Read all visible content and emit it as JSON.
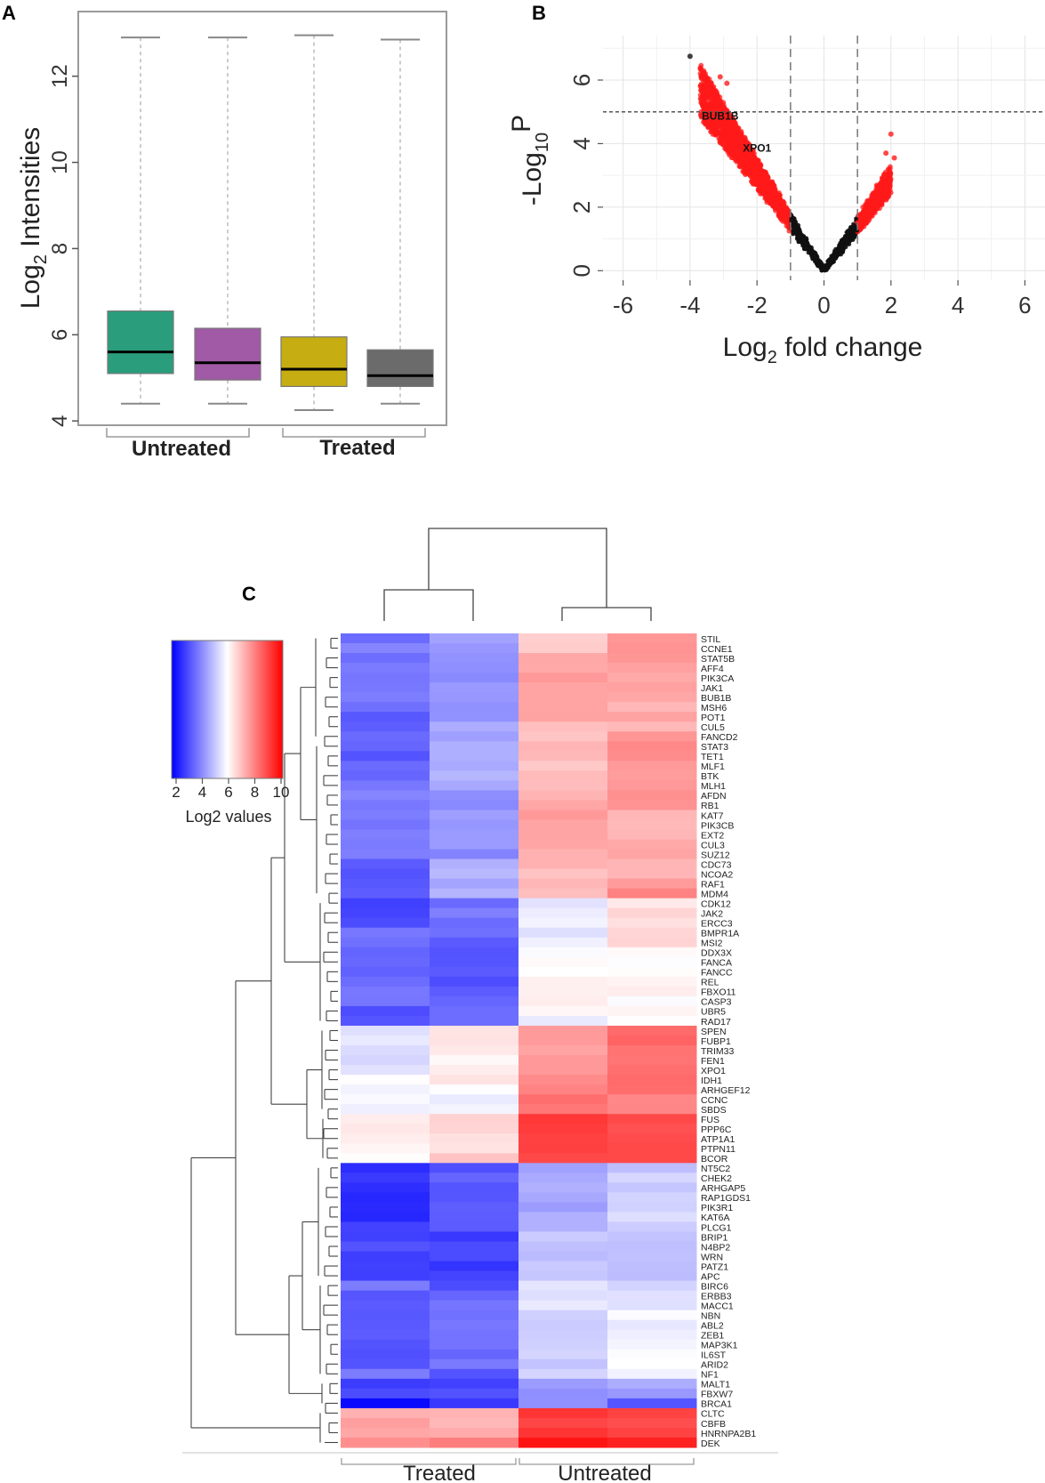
{
  "chart_data": [
    {
      "panel": "A",
      "type": "box",
      "ylabel": "Log2 Intensities",
      "ylim": [
        3.9,
        13.5
      ],
      "yticks": [
        4,
        6,
        8,
        10,
        12
      ],
      "boxes": [
        {
          "min": 4.4,
          "q1": 5.1,
          "median": 5.6,
          "q3": 6.55,
          "max": 12.9,
          "color": "#2a9d7c"
        },
        {
          "min": 4.4,
          "q1": 4.95,
          "median": 5.35,
          "q3": 6.15,
          "max": 12.9,
          "color": "#a05aa6"
        },
        {
          "min": 4.25,
          "q1": 4.8,
          "median": 5.2,
          "q3": 5.95,
          "max": 12.95,
          "color": "#c6ad12"
        },
        {
          "min": 4.4,
          "q1": 4.8,
          "median": 5.05,
          "q3": 5.65,
          "max": 12.85,
          "color": "#6b6b6b"
        }
      ],
      "groups": [
        "Untreated",
        "Treated"
      ]
    },
    {
      "panel": "B",
      "type": "scatter",
      "title": "",
      "xlabel": "Log2 fold change",
      "ylabel": "-Log10P",
      "xlim": [
        -6.6,
        6.6
      ],
      "ylim": [
        -0.3,
        7.4
      ],
      "xticks": [
        -6,
        -4,
        -2,
        0,
        2,
        4,
        6
      ],
      "yticks": [
        0,
        2,
        4,
        6
      ],
      "thresholds": {
        "fold_change": [
          -1,
          1
        ],
        "p_value": 5
      },
      "labels": [
        {
          "text": "BUB1B",
          "x": -3.1,
          "y": 4.75
        },
        {
          "text": "XPO1",
          "x": -2.0,
          "y": 3.75
        }
      ]
    },
    {
      "panel": "C",
      "type": "heatmap",
      "columns": [
        "Treated",
        "Untreated"
      ],
      "legend": {
        "title": "Log2 values",
        "ticks": [
          "2",
          "4",
          "6",
          "8",
          "10"
        ]
      },
      "genes": [
        "STIL",
        "CCNE1",
        "STAT5B",
        "AFF4",
        "PIK3CA",
        "JAK1",
        "BUB1B",
        "MSH6",
        "POT1",
        "CUL5",
        "FANCD2",
        "STAT3",
        "TET1",
        "MLF1",
        "BTK",
        "MLH1",
        "AFDN",
        "RB1",
        "KAT7",
        "PIK3CB",
        "EXT2",
        "CUL3",
        "SUZ12",
        "CDC73",
        "NCOA2",
        "RAF1",
        "MDM4",
        "CDK12",
        "JAK2",
        "ERCC3",
        "BMPR1A",
        "MSI2",
        "DDX3X",
        "FANCA",
        "FANCC",
        "REL",
        "FBXO11",
        "CASP3",
        "UBR5",
        "RAD17",
        "SPEN",
        "FUBP1",
        "TRIM33",
        "FEN1",
        "XPO1",
        "IDH1",
        "ARHGEF12",
        "CCNC",
        "SBDS",
        "FUS",
        "PPP6C",
        "ATP1A1",
        "PTPN11",
        "BCOR",
        "NT5C2",
        "CHEK2",
        "ARHGAP5",
        "RAP1GDS1",
        "PIK3R1",
        "KAT6A",
        "PLCG1",
        "BRIP1",
        "N4BP2",
        "WRN",
        "PATZ1",
        "APC",
        "BIRC6",
        "ERBB3",
        "MACC1",
        "NBN",
        "ABL2",
        "ZEB1",
        "MAP3K1",
        "IL6ST",
        "ARID2",
        "NF1",
        "MALT1",
        "FBXW7",
        "BRCA1",
        "CLTC",
        "CBFB",
        "HNRNPA2B1",
        "DEK"
      ]
    }
  ],
  "panel_letters": [
    "A",
    "B",
    "C"
  ]
}
